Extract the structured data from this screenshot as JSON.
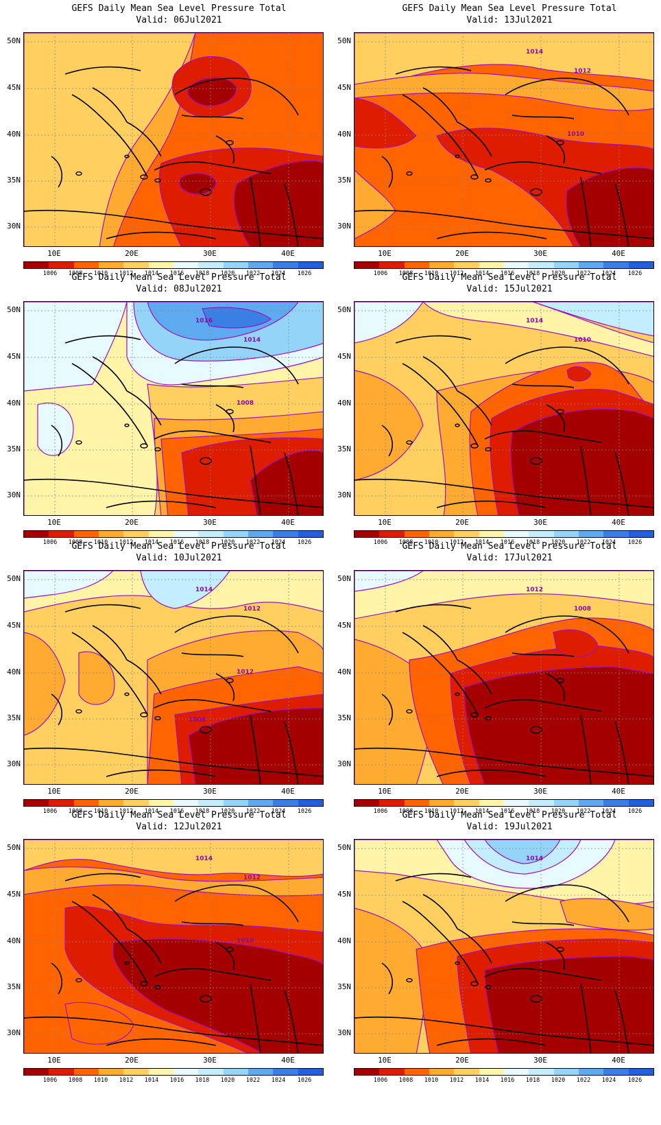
{
  "colorbar": {
    "labels": [
      "1006",
      "1008",
      "1010",
      "1012",
      "1014",
      "1016",
      "1018",
      "1020",
      "1022",
      "1024",
      "1026"
    ],
    "colors": [
      "#a50000",
      "#dd1c00",
      "#ff6400",
      "#ffaa30",
      "#ffd060",
      "#fff4a8",
      "#e6faff",
      "#c2eeff",
      "#94d4f8",
      "#5eaaf0",
      "#3a80e4",
      "#2260d8"
    ]
  },
  "lat_ticks": [
    "50N",
    "45N",
    "40N",
    "35N",
    "30N"
  ],
  "lon_ticks": [
    "10E",
    "20E",
    "30E",
    "40E"
  ],
  "contour_color": "#a010c0",
  "panels": [
    {
      "title": "GEFS Daily Mean Sea Level Pressure Total",
      "valid": "Valid: 06Jul2021",
      "labels": []
    },
    {
      "title": "GEFS Daily Mean Sea Level Pressure Total",
      "valid": "Valid: 13Jul2021",
      "labels": [
        "1014",
        "1012",
        "1010"
      ]
    },
    {
      "title": "GEFS Daily Mean Sea Level Pressure Total",
      "valid": "Valid: 08Jul2021",
      "labels": [
        "1016",
        "1014",
        "1008"
      ]
    },
    {
      "title": "GEFS Daily Mean Sea Level Pressure Total",
      "valid": "Valid: 15Jul2021",
      "labels": [
        "1014",
        "1010"
      ]
    },
    {
      "title": "GEFS Daily Mean Sea Level Pressure Total",
      "valid": "Valid: 10Jul2021",
      "labels": [
        "1014",
        "1012",
        "1012",
        "1008"
      ]
    },
    {
      "title": "GEFS Daily Mean Sea Level Pressure Total",
      "valid": "Valid: 17Jul2021",
      "labels": [
        "1012",
        "1008"
      ]
    },
    {
      "title": "GEFS Daily Mean Sea Level Pressure Total",
      "valid": "Valid: 12Jul2021",
      "labels": [
        "1014",
        "1012",
        "1010"
      ]
    },
    {
      "title": "GEFS Daily Mean Sea Level Pressure Total",
      "valid": "Valid: 19Jul2021",
      "labels": [
        "1014"
      ]
    }
  ]
}
